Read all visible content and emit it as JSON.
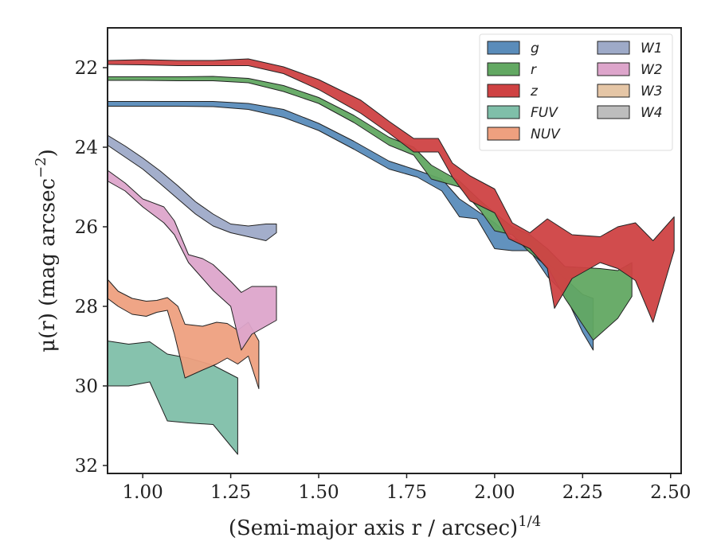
{
  "chart_data": {
    "type": "area",
    "xlabel": "(Semi-major axis r / arcsec)",
    "xlabel_sup": "1/4",
    "ylabel": "μ(r) (mag arcsec",
    "ylabel_sup": "−2",
    "ylabel_end": ")",
    "xlim": [
      0.9,
      2.53
    ],
    "ylim": [
      32.2,
      21.0
    ],
    "y_inverted": true,
    "grid": false,
    "legend_position": "top-right",
    "xticks": [
      {
        "value": 1.0,
        "label": "1.00"
      },
      {
        "value": 1.25,
        "label": "1.25"
      },
      {
        "value": 1.5,
        "label": "1.50"
      },
      {
        "value": 1.75,
        "label": "1.75"
      },
      {
        "value": 2.0,
        "label": "2.00"
      },
      {
        "value": 2.25,
        "label": "2.25"
      },
      {
        "value": 2.5,
        "label": "2.50"
      }
    ],
    "yticks": [
      {
        "value": 22,
        "label": "22"
      },
      {
        "value": 24,
        "label": "24"
      },
      {
        "value": 26,
        "label": "26"
      },
      {
        "value": 28,
        "label": "28"
      },
      {
        "value": 30,
        "label": "30"
      },
      {
        "value": 32,
        "label": "32"
      }
    ],
    "series": [
      {
        "name": "FUV",
        "color": "#7fbfa9",
        "upper": [
          [
            0.9,
            28.87
          ],
          [
            0.96,
            28.95
          ],
          [
            1.02,
            28.89
          ],
          [
            1.07,
            29.2
          ],
          [
            1.13,
            29.3
          ],
          [
            1.2,
            29.48
          ],
          [
            1.27,
            29.8
          ]
        ],
        "lower": [
          [
            0.9,
            30.0
          ],
          [
            0.96,
            30.0
          ],
          [
            1.02,
            29.9
          ],
          [
            1.07,
            30.88
          ],
          [
            1.13,
            30.93
          ],
          [
            1.2,
            30.97
          ],
          [
            1.27,
            31.72
          ]
        ]
      },
      {
        "name": "NUV",
        "color": "#eea07f",
        "upper": [
          [
            0.9,
            27.32
          ],
          [
            0.93,
            27.62
          ],
          [
            0.97,
            27.8
          ],
          [
            1.01,
            27.87
          ],
          [
            1.04,
            27.85
          ],
          [
            1.07,
            27.78
          ],
          [
            1.1,
            28.0
          ],
          [
            1.12,
            28.45
          ],
          [
            1.17,
            28.5
          ],
          [
            1.21,
            28.4
          ],
          [
            1.24,
            28.43
          ],
          [
            1.27,
            28.6
          ],
          [
            1.3,
            28.4
          ],
          [
            1.33,
            28.87
          ]
        ],
        "lower": [
          [
            0.9,
            27.8
          ],
          [
            0.93,
            28.0
          ],
          [
            0.97,
            28.2
          ],
          [
            1.01,
            28.25
          ],
          [
            1.04,
            28.15
          ],
          [
            1.07,
            28.1
          ],
          [
            1.09,
            28.7
          ],
          [
            1.12,
            29.8
          ],
          [
            1.17,
            29.6
          ],
          [
            1.21,
            29.45
          ],
          [
            1.24,
            29.3
          ],
          [
            1.27,
            29.45
          ],
          [
            1.3,
            29.25
          ],
          [
            1.33,
            30.07
          ]
        ]
      },
      {
        "name": "W2",
        "color": "#dda5cb",
        "upper": [
          [
            0.9,
            24.58
          ],
          [
            0.95,
            24.9
          ],
          [
            1.0,
            25.3
          ],
          [
            1.06,
            25.5
          ],
          [
            1.09,
            25.85
          ],
          [
            1.13,
            26.7
          ],
          [
            1.17,
            26.8
          ],
          [
            1.2,
            26.95
          ],
          [
            1.25,
            27.37
          ],
          [
            1.28,
            27.65
          ],
          [
            1.31,
            27.5
          ],
          [
            1.38,
            27.5
          ]
        ],
        "lower": [
          [
            0.9,
            24.85
          ],
          [
            0.95,
            25.1
          ],
          [
            1.0,
            25.5
          ],
          [
            1.06,
            25.9
          ],
          [
            1.09,
            26.2
          ],
          [
            1.13,
            26.9
          ],
          [
            1.17,
            27.3
          ],
          [
            1.2,
            27.6
          ],
          [
            1.25,
            28.0
          ],
          [
            1.28,
            29.1
          ],
          [
            1.31,
            28.7
          ],
          [
            1.38,
            28.35
          ]
        ]
      },
      {
        "name": "W1",
        "color": "#9eaac8",
        "upper": [
          [
            0.9,
            23.7
          ],
          [
            0.95,
            23.97
          ],
          [
            1.0,
            24.27
          ],
          [
            1.05,
            24.6
          ],
          [
            1.1,
            24.97
          ],
          [
            1.15,
            25.37
          ],
          [
            1.2,
            25.68
          ],
          [
            1.25,
            25.93
          ],
          [
            1.3,
            25.98
          ],
          [
            1.35,
            25.93
          ],
          [
            1.38,
            25.93
          ]
        ],
        "lower": [
          [
            0.9,
            23.95
          ],
          [
            0.95,
            24.25
          ],
          [
            1.0,
            24.55
          ],
          [
            1.05,
            24.92
          ],
          [
            1.1,
            25.3
          ],
          [
            1.15,
            25.68
          ],
          [
            1.2,
            25.98
          ],
          [
            1.25,
            26.15
          ],
          [
            1.3,
            26.25
          ],
          [
            1.35,
            26.35
          ],
          [
            1.38,
            26.15
          ]
        ]
      },
      {
        "name": "g",
        "color": "#5a8cba",
        "upper": [
          [
            0.9,
            22.85
          ],
          [
            1.0,
            22.85
          ],
          [
            1.1,
            22.85
          ],
          [
            1.2,
            22.85
          ],
          [
            1.3,
            22.9
          ],
          [
            1.4,
            23.05
          ],
          [
            1.5,
            23.4
          ],
          [
            1.6,
            23.85
          ],
          [
            1.7,
            24.35
          ],
          [
            1.78,
            24.58
          ],
          [
            1.85,
            24.8
          ],
          [
            1.9,
            25.3
          ],
          [
            1.95,
            25.6
          ],
          [
            2.0,
            25.9
          ],
          [
            2.05,
            26.3
          ],
          [
            2.1,
            26.4
          ],
          [
            2.15,
            26.9
          ],
          [
            2.2,
            27.3
          ],
          [
            2.25,
            27.7
          ],
          [
            2.28,
            27.8
          ]
        ],
        "lower": [
          [
            0.9,
            22.97
          ],
          [
            1.0,
            22.97
          ],
          [
            1.1,
            22.97
          ],
          [
            1.2,
            22.98
          ],
          [
            1.3,
            23.05
          ],
          [
            1.4,
            23.25
          ],
          [
            1.5,
            23.58
          ],
          [
            1.6,
            24.05
          ],
          [
            1.7,
            24.55
          ],
          [
            1.78,
            24.75
          ],
          [
            1.85,
            25.1
          ],
          [
            1.9,
            25.75
          ],
          [
            1.95,
            25.8
          ],
          [
            2.0,
            26.55
          ],
          [
            2.05,
            26.6
          ],
          [
            2.1,
            26.6
          ],
          [
            2.15,
            27.25
          ],
          [
            2.2,
            27.7
          ],
          [
            2.25,
            28.65
          ],
          [
            2.28,
            29.1
          ]
        ]
      },
      {
        "name": "r",
        "color": "#62a862",
        "upper": [
          [
            0.9,
            22.23
          ],
          [
            1.0,
            22.23
          ],
          [
            1.1,
            22.23
          ],
          [
            1.2,
            22.22
          ],
          [
            1.3,
            22.27
          ],
          [
            1.4,
            22.45
          ],
          [
            1.5,
            22.75
          ],
          [
            1.6,
            23.2
          ],
          [
            1.7,
            23.75
          ],
          [
            1.77,
            24.0
          ],
          [
            1.82,
            24.45
          ],
          [
            1.9,
            24.85
          ],
          [
            1.96,
            25.35
          ],
          [
            2.0,
            25.65
          ],
          [
            2.05,
            26.0
          ],
          [
            2.1,
            26.2
          ],
          [
            2.15,
            26.55
          ],
          [
            2.2,
            27.0
          ],
          [
            2.3,
            27.05
          ],
          [
            2.35,
            27.1
          ],
          [
            2.39,
            26.9
          ]
        ],
        "lower": [
          [
            0.9,
            22.32
          ],
          [
            1.0,
            22.32
          ],
          [
            1.1,
            22.33
          ],
          [
            1.2,
            22.33
          ],
          [
            1.3,
            22.38
          ],
          [
            1.4,
            22.6
          ],
          [
            1.5,
            22.9
          ],
          [
            1.6,
            23.38
          ],
          [
            1.7,
            23.95
          ],
          [
            1.77,
            24.2
          ],
          [
            1.82,
            24.8
          ],
          [
            1.9,
            25.0
          ],
          [
            1.96,
            25.6
          ],
          [
            2.0,
            26.1
          ],
          [
            2.05,
            26.2
          ],
          [
            2.1,
            26.65
          ],
          [
            2.15,
            27.0
          ],
          [
            2.2,
            27.8
          ],
          [
            2.28,
            28.85
          ],
          [
            2.35,
            28.3
          ],
          [
            2.39,
            27.75
          ]
        ]
      },
      {
        "name": "z",
        "color": "#cf4243",
        "upper": [
          [
            0.9,
            21.82
          ],
          [
            1.0,
            21.8
          ],
          [
            1.1,
            21.82
          ],
          [
            1.2,
            21.82
          ],
          [
            1.3,
            21.78
          ],
          [
            1.4,
            21.98
          ],
          [
            1.5,
            22.3
          ],
          [
            1.62,
            22.82
          ],
          [
            1.7,
            23.35
          ],
          [
            1.77,
            23.78
          ],
          [
            1.84,
            23.78
          ],
          [
            1.88,
            24.4
          ],
          [
            1.93,
            24.72
          ],
          [
            2.0,
            25.05
          ],
          [
            2.05,
            25.9
          ],
          [
            2.1,
            26.15
          ],
          [
            2.15,
            25.8
          ],
          [
            2.22,
            26.2
          ],
          [
            2.3,
            26.25
          ],
          [
            2.35,
            26.0
          ],
          [
            2.4,
            25.9
          ],
          [
            2.45,
            26.35
          ],
          [
            2.51,
            25.75
          ]
        ],
        "lower": [
          [
            0.9,
            21.92
          ],
          [
            1.0,
            21.93
          ],
          [
            1.1,
            21.95
          ],
          [
            1.2,
            21.95
          ],
          [
            1.3,
            21.95
          ],
          [
            1.4,
            22.15
          ],
          [
            1.5,
            22.55
          ],
          [
            1.62,
            23.15
          ],
          [
            1.7,
            23.65
          ],
          [
            1.77,
            24.12
          ],
          [
            1.84,
            24.12
          ],
          [
            1.88,
            24.75
          ],
          [
            1.93,
            25.35
          ],
          [
            2.0,
            25.65
          ],
          [
            2.04,
            26.3
          ],
          [
            2.1,
            26.55
          ],
          [
            2.15,
            27.05
          ],
          [
            2.17,
            28.05
          ],
          [
            2.22,
            27.3
          ],
          [
            2.3,
            26.9
          ],
          [
            2.35,
            27.05
          ],
          [
            2.4,
            27.35
          ],
          [
            2.45,
            28.4
          ],
          [
            2.51,
            26.6
          ]
        ]
      },
      {
        "name": "W3",
        "color": "#e5c6a6",
        "upper": [],
        "lower": []
      },
      {
        "name": "W4",
        "color": "#bdbdbd",
        "upper": [],
        "lower": []
      }
    ],
    "legend": {
      "columns": [
        [
          "g",
          "r",
          "z",
          "FUV",
          "NUV"
        ],
        [
          "W1",
          "W2",
          "W3",
          "W4"
        ]
      ],
      "colors": {
        "g": "#5a8cba",
        "r": "#62a862",
        "z": "#cf4243",
        "FUV": "#7fbfa9",
        "NUV": "#eea07f",
        "W1": "#9eaac8",
        "W2": "#dda5cb",
        "W3": "#e5c6a6",
        "W4": "#bdbdbd"
      },
      "display": {
        "g": "g",
        "r": "r",
        "z": "z",
        "FUV": "FUV",
        "NUV": "NUV",
        "W1": "W1",
        "W2": "W2",
        "W3": "W3",
        "W4": "W4"
      }
    }
  }
}
